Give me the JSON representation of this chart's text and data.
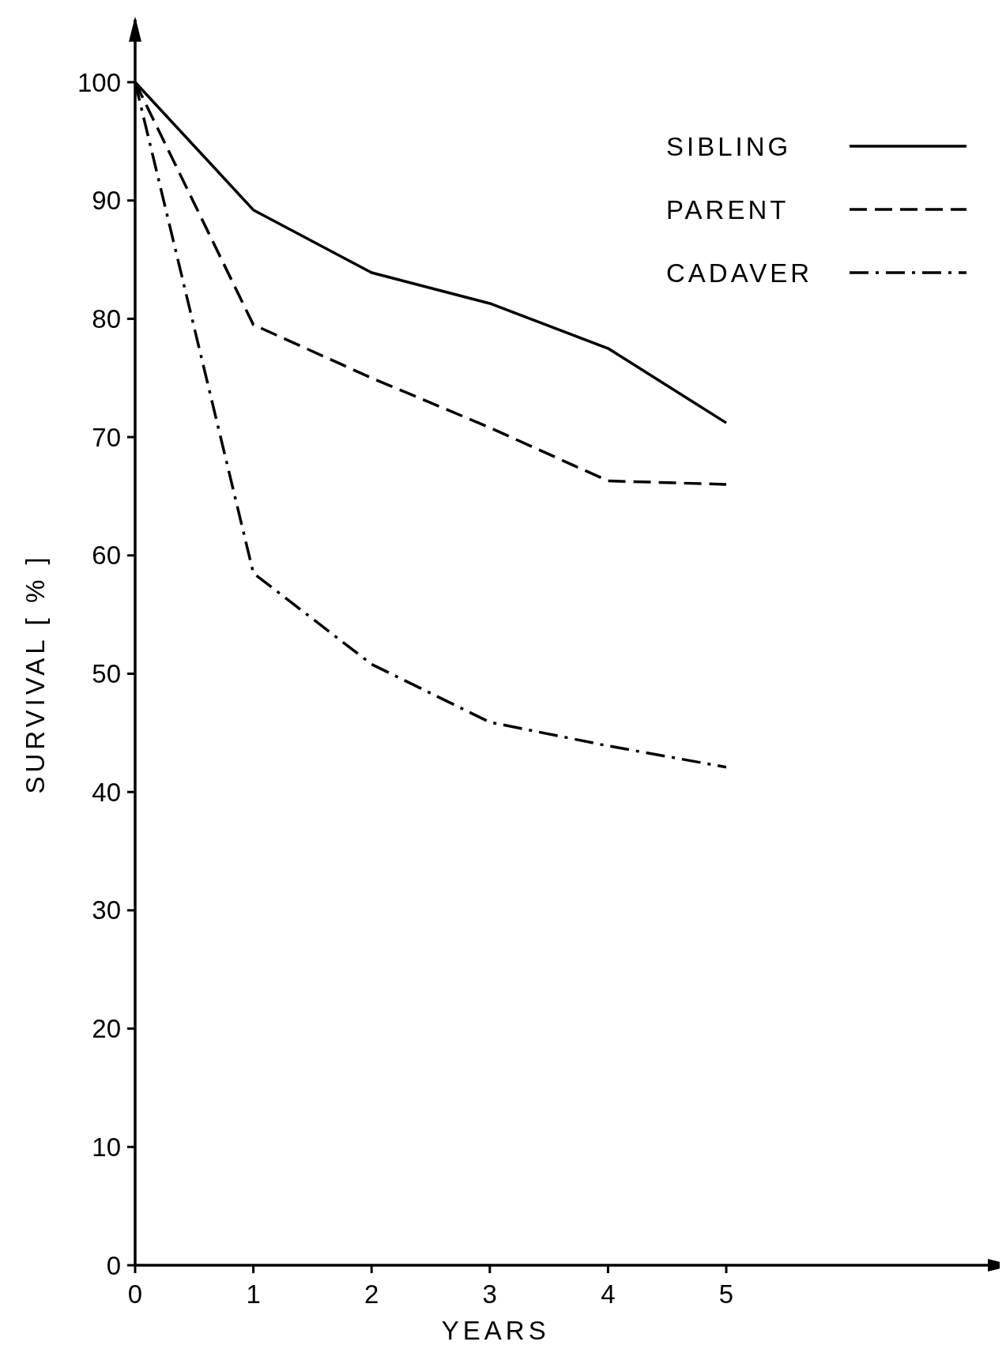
{
  "chart_data": {
    "type": "line",
    "xlabel": "YEARS",
    "ylabel": "SURVIVAL [ % ]",
    "x": [
      0,
      1,
      2,
      3,
      4,
      5
    ],
    "xlim": [
      0,
      7.4
    ],
    "xticks": [
      0,
      1,
      2,
      3,
      4,
      5
    ],
    "ylim": [
      0,
      105.3
    ],
    "yticks": [
      0,
      10,
      20,
      30,
      40,
      50,
      60,
      70,
      80,
      90,
      100
    ],
    "series": [
      {
        "name": "SIBLING",
        "color": "#000000",
        "line_style": "solid",
        "values": [
          100,
          89.2,
          83.9,
          81.3,
          77.5,
          71.2
        ]
      },
      {
        "name": "PARENT",
        "color": "#000000",
        "line_style": "dashed",
        "values": [
          100,
          79.5,
          75,
          70.8,
          66.3,
          66
        ]
      },
      {
        "name": "CADAVER",
        "color": "#000000",
        "line_style": "dashdot",
        "values": [
          100,
          58.5,
          50.8,
          45.9,
          43.9,
          42.1
        ]
      }
    ],
    "legend": "top right",
    "grid": false
  }
}
